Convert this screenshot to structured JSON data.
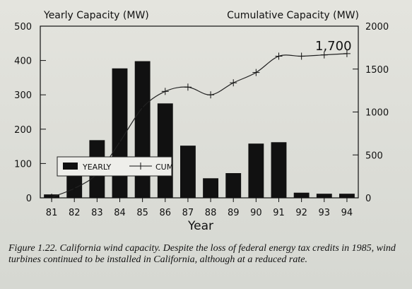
{
  "chart_data": {
    "type": "bar",
    "categories": [
      "81",
      "82",
      "83",
      "84",
      "85",
      "86",
      "87",
      "88",
      "89",
      "90",
      "91",
      "92",
      "93",
      "94"
    ],
    "series": [
      {
        "name": "YEARLY",
        "type": "bar",
        "axis": "left",
        "values": [
          10,
          100,
          168,
          377,
          398,
          275,
          152,
          57,
          72,
          158,
          162,
          15,
          12,
          12
        ]
      },
      {
        "name": "CUM",
        "type": "line",
        "axis": "right",
        "values": [
          8,
          110,
          280,
          650,
          1050,
          1240,
          1290,
          1200,
          1340,
          1460,
          1650,
          1650,
          1665,
          1680
        ]
      }
    ],
    "left_axis": {
      "title": "Yearly Capacity (MW)",
      "ylim": [
        0,
        500
      ],
      "ticks": [
        "0",
        "100",
        "200",
        "300",
        "400",
        "500"
      ]
    },
    "right_axis": {
      "title": "Cumulative Capacity (MW)",
      "ylim": [
        0,
        2000
      ],
      "ticks": [
        "0",
        "500",
        "1000",
        "1500",
        "2000"
      ]
    },
    "xlabel": "Year",
    "annotation": "1,700",
    "legend": {
      "position": "lower-left",
      "entries": [
        "YEARLY",
        "CUM"
      ]
    },
    "grid": false
  },
  "caption": "Figure 1.22. California wind capacity. Despite the loss of federal energy tax credits in 1985, wind turbines continued to be installed in California, although at a reduced rate.",
  "colors": {
    "bar": "#111111",
    "line": "#222222",
    "background": "#dcdcd6"
  }
}
